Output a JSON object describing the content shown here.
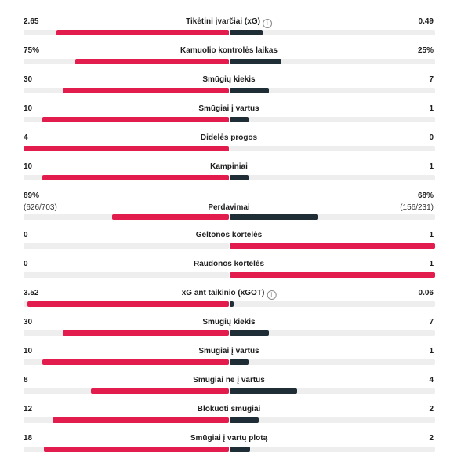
{
  "colors": {
    "home": "#e21c4c",
    "away": "#1f2d36",
    "track": "#eeeeee"
  },
  "info_icon": "info-icon",
  "rows": [
    {
      "label": "Tikėtini įvarčiai (xG)",
      "info": true,
      "home": "2.65",
      "away": "0.49",
      "home_share": 0.84,
      "away_share": 0.16,
      "home_leads": true
    },
    {
      "label": "Kamuolio kontrolės laikas",
      "info": false,
      "home": "75%",
      "away": "25%",
      "home_share": 0.75,
      "away_share": 0.25,
      "home_leads": true
    },
    {
      "label": "Smūgių kiekis",
      "info": false,
      "home": "30",
      "away": "7",
      "home_share": 0.81,
      "away_share": 0.19,
      "home_leads": true
    },
    {
      "label": "Smūgiai į vartus",
      "info": false,
      "home": "10",
      "away": "1",
      "home_share": 0.91,
      "away_share": 0.09,
      "home_leads": true
    },
    {
      "label": "Didelės progos",
      "info": false,
      "home": "4",
      "away": "0",
      "home_share": 1.0,
      "away_share": 0.0,
      "home_leads": true
    },
    {
      "label": "Kampiniai",
      "info": false,
      "home": "10",
      "away": "1",
      "home_share": 0.91,
      "away_share": 0.09,
      "home_leads": true
    },
    {
      "label": "Perdavimai",
      "info": false,
      "home": "89%",
      "away": "68%",
      "home_sub": "(626/703)",
      "away_sub": "(156/231)",
      "home_share": 0.57,
      "away_share": 0.43,
      "home_leads": true
    },
    {
      "label": "Geltonos kortelės",
      "info": false,
      "home": "0",
      "away": "1",
      "home_share": 0.0,
      "away_share": 1.0,
      "home_leads": false
    },
    {
      "label": "Raudonos kortelės",
      "info": false,
      "home": "0",
      "away": "1",
      "home_share": 0.0,
      "away_share": 1.0,
      "home_leads": false
    },
    {
      "label": "xG ant taikinio (xGOT)",
      "info": true,
      "home": "3.52",
      "away": "0.06",
      "home_share": 0.98,
      "away_share": 0.02,
      "home_leads": true
    },
    {
      "label": "Smūgių kiekis",
      "info": false,
      "home": "30",
      "away": "7",
      "home_share": 0.81,
      "away_share": 0.19,
      "home_leads": true
    },
    {
      "label": "Smūgiai į vartus",
      "info": false,
      "home": "10",
      "away": "1",
      "home_share": 0.91,
      "away_share": 0.09,
      "home_leads": true
    },
    {
      "label": "Smūgiai ne į vartus",
      "info": false,
      "home": "8",
      "away": "4",
      "home_share": 0.67,
      "away_share": 0.33,
      "home_leads": true
    },
    {
      "label": "Blokuoti smūgiai",
      "info": false,
      "home": "12",
      "away": "2",
      "home_share": 0.86,
      "away_share": 0.14,
      "home_leads": true
    },
    {
      "label": "Smūgiai į vartų plotą",
      "info": false,
      "home": "18",
      "away": "2",
      "home_share": 0.9,
      "away_share": 0.1,
      "home_leads": true
    }
  ]
}
